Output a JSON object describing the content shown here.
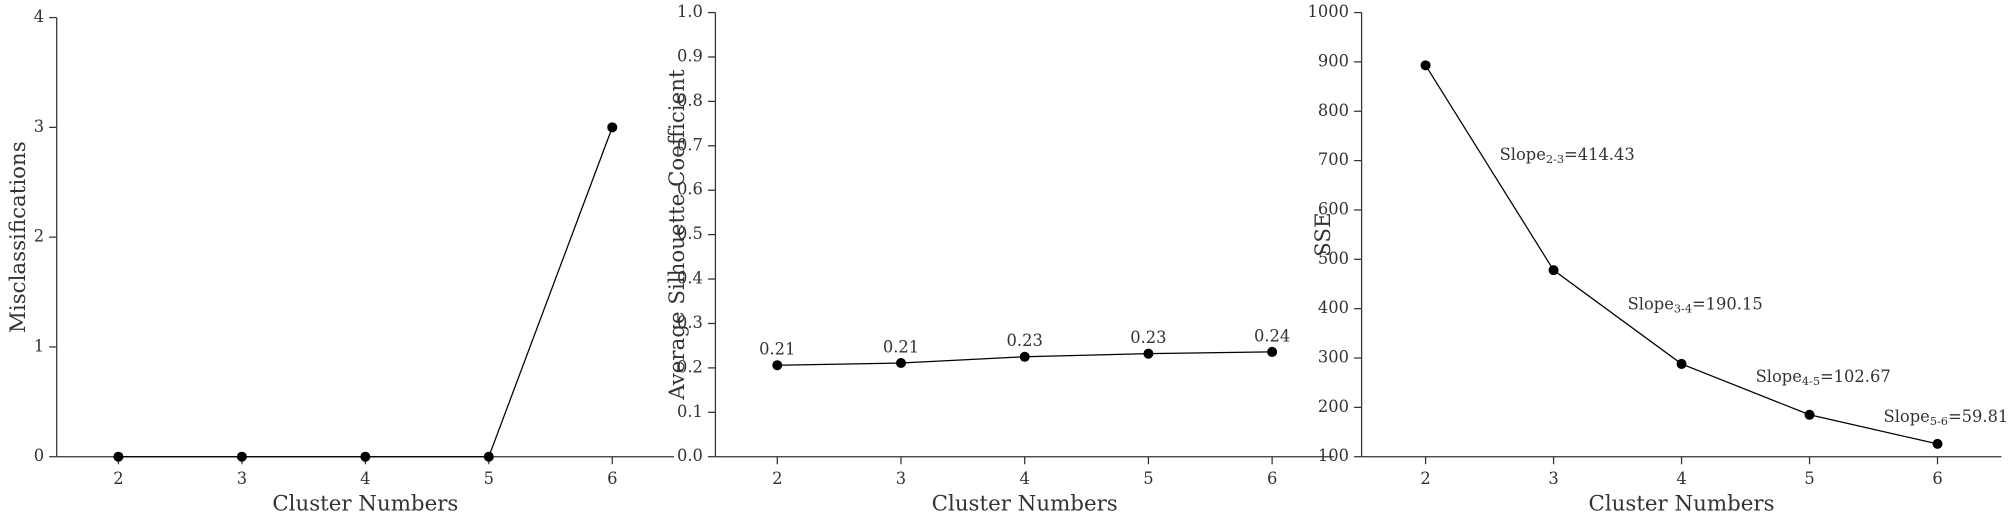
{
  "chart_data": [
    {
      "type": "line",
      "x": [
        2,
        3,
        4,
        5,
        6
      ],
      "xlim": [
        1.5,
        6.5
      ],
      "xticks": [
        2,
        3,
        4,
        5,
        6
      ],
      "ylim": [
        0,
        4
      ],
      "yticks": [
        0,
        1,
        2,
        3,
        4
      ],
      "xlabel": "Cluster Numbers",
      "ylabel": "Misclassifications",
      "series": [
        {
          "color": "#000000",
          "values": [
            0,
            0,
            0,
            0,
            3
          ]
        }
      ]
    },
    {
      "type": "line",
      "x": [
        2,
        3,
        4,
        5,
        6
      ],
      "xlim": [
        1.5,
        6.5
      ],
      "xticks": [
        2,
        3,
        4,
        5,
        6
      ],
      "ylim": [
        0,
        1
      ],
      "yticks": [
        {
          "value": 0,
          "label": "0.0"
        },
        0.1,
        0.2,
        0.3,
        0.4,
        0.5,
        0.6,
        0.7,
        0.8,
        0.9,
        {
          "value": 1,
          "label": "1.0"
        }
      ],
      "xlabel": "Cluster Numbers",
      "ylabel": "Average Silhouette Coefficient",
      "series": [
        {
          "color": "#000000",
          "values": [
            0.206,
            0.211,
            0.225,
            0.232,
            0.236
          ],
          "value_labels": [
            "0.21",
            "0.21",
            "0.23",
            "0.23",
            "0.24"
          ]
        }
      ]
    },
    {
      "type": "line",
      "x": [
        2,
        3,
        4,
        5,
        6
      ],
      "xlim": [
        1.5,
        6.5
      ],
      "xticks": [
        2,
        3,
        4,
        5,
        6
      ],
      "ylim": [
        100,
        1000
      ],
      "yticks": [
        100,
        200,
        300,
        400,
        500,
        600,
        700,
        800,
        900,
        1000
      ],
      "xlabel": "Cluster Numbers",
      "ylabel": "SSE",
      "series": [
        {
          "color": "#000000",
          "values": [
            893,
            478,
            288,
            185,
            126
          ]
        }
      ],
      "annotations": [
        {
          "label": "Slope",
          "subscript": "2-3",
          "text": "=414.43"
        },
        {
          "label": "Slope",
          "subscript": "3-4",
          "text": "=190.15"
        },
        {
          "label": "Slope",
          "subscript": "4-5",
          "text": "=102.67"
        },
        {
          "label": "Slope",
          "subscript": "5-6",
          "text": "=59.81"
        }
      ]
    }
  ]
}
